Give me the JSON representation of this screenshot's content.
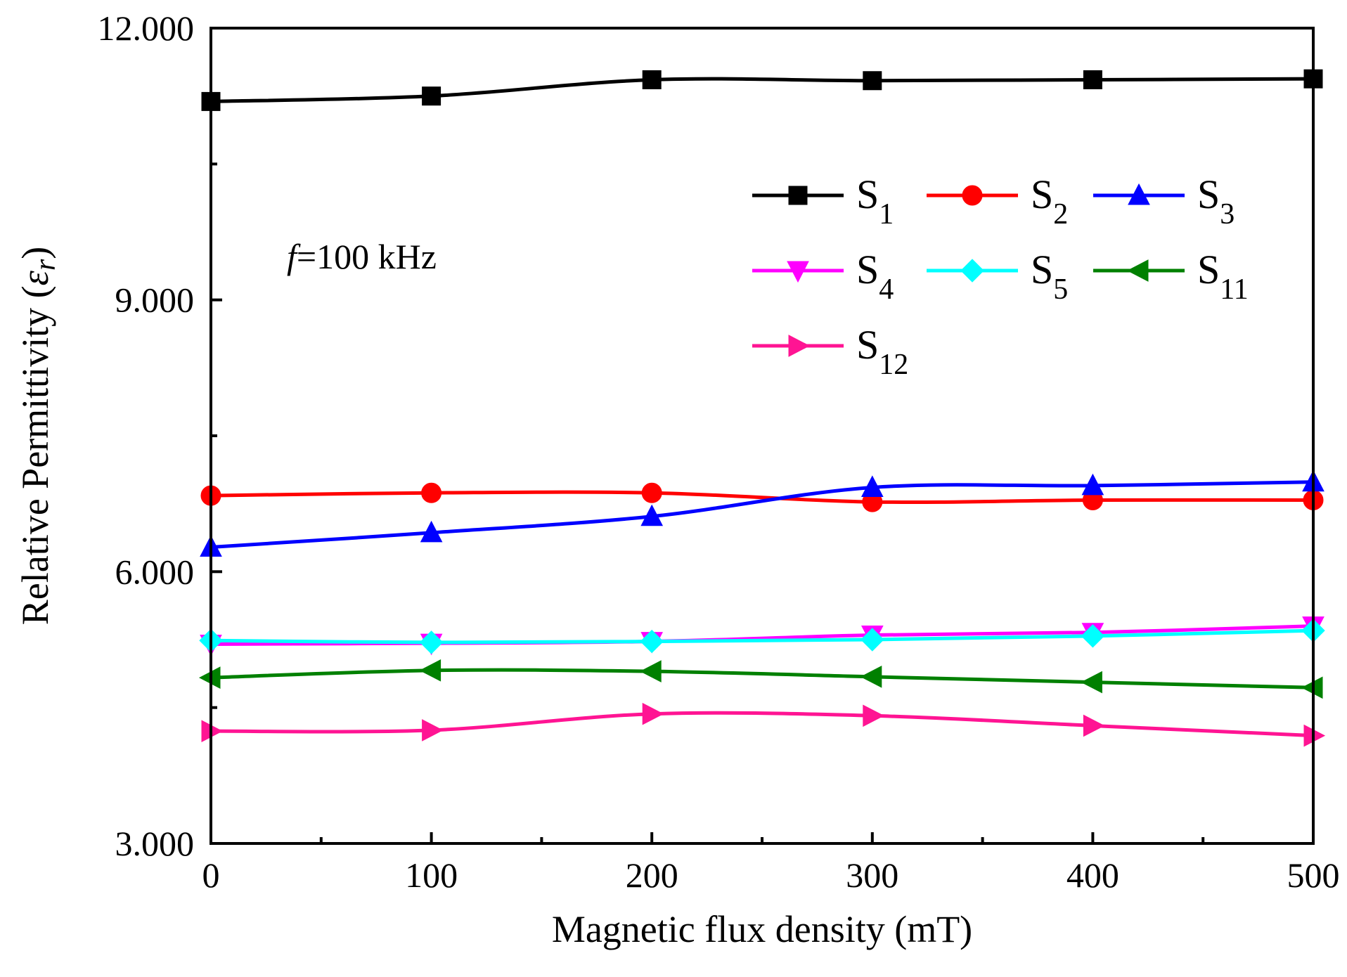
{
  "chart_data": {
    "type": "line",
    "title": "",
    "xlabel": "Magnetic flux density (mT)",
    "ylabel": "Relative Permittivity (",
    "ylabel_symbol": "ε",
    "ylabel_symbol_sub": "r",
    "ylabel_close": ")",
    "annotation": {
      "italic": "f",
      "text": "=100 kHz"
    },
    "xlim": [
      0,
      500
    ],
    "ylim": [
      3,
      12
    ],
    "xticks": [
      0,
      100,
      200,
      300,
      400,
      500
    ],
    "xtick_labels": [
      "0",
      "100",
      "200",
      "300",
      "400",
      "500"
    ],
    "yticks": [
      3,
      6,
      9,
      12
    ],
    "ytick_labels": [
      "3.000",
      "6.000",
      "9.000",
      "12.000"
    ],
    "x": [
      0,
      100,
      200,
      300,
      400,
      500
    ],
    "series": [
      {
        "name": "S",
        "sub": "1",
        "color": "#000000",
        "marker": "square",
        "values": [
          11.19,
          11.25,
          11.43,
          11.42,
          11.43,
          11.44
        ]
      },
      {
        "name": "S",
        "sub": "2",
        "color": "#ff0000",
        "marker": "circle",
        "values": [
          6.84,
          6.87,
          6.87,
          6.77,
          6.79,
          6.79
        ]
      },
      {
        "name": "S",
        "sub": "3",
        "color": "#0000ff",
        "marker": "triangle-up",
        "values": [
          6.27,
          6.43,
          6.61,
          6.93,
          6.95,
          6.99
        ]
      },
      {
        "name": "S",
        "sub": "4",
        "color": "#ff00ff",
        "marker": "triangle-down",
        "values": [
          5.2,
          5.21,
          5.23,
          5.3,
          5.33,
          5.4
        ]
      },
      {
        "name": "S",
        "sub": "5",
        "color": "#00ffff",
        "marker": "diamond",
        "values": [
          5.24,
          5.22,
          5.23,
          5.25,
          5.29,
          5.35
        ]
      },
      {
        "name": "S",
        "sub": "11",
        "color": "#008000",
        "marker": "triangle-left",
        "values": [
          4.83,
          4.91,
          4.9,
          4.84,
          4.78,
          4.72
        ]
      },
      {
        "name": "S",
        "sub": "12",
        "color": "#ff1493",
        "marker": "triangle-right",
        "values": [
          4.24,
          4.25,
          4.43,
          4.41,
          4.3,
          4.19
        ]
      }
    ],
    "legend": "top-right",
    "grid": false
  }
}
